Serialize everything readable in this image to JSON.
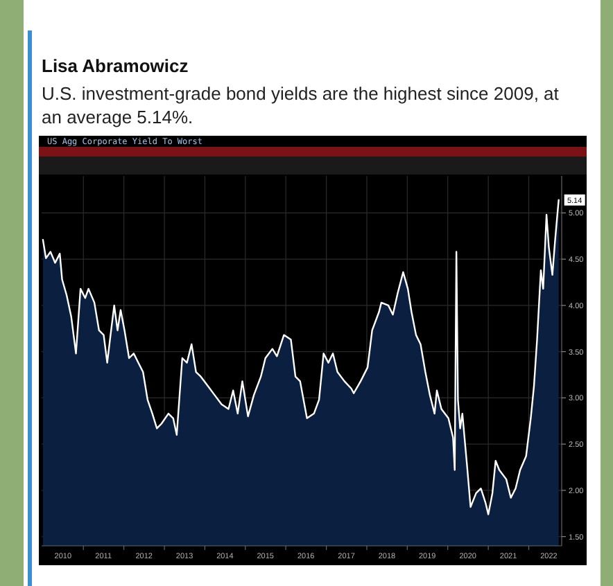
{
  "chart_data": {
    "type": "area",
    "title": "U.S. investment-grade bond yields are the highest since 2009, at an average 5.14%.",
    "subtitle": "US Agg Corporate Yield To Worst",
    "annotations": [
      "Lisa Abramowicz",
      {
        "text": "5.14",
        "x": "2022-09-28",
        "y": 5.14
      }
    ],
    "x": [
      "2010-01-01",
      "2010-01-28",
      "2010-03-10",
      "2010-04-21",
      "2010-06-02",
      "2010-06-23",
      "2010-08-03",
      "2010-09-13",
      "2010-10-26",
      "2010-12-06",
      "2011-01-17",
      "2011-02-16",
      "2011-04-10",
      "2011-05-22",
      "2011-07-03",
      "2011-08-04",
      "2011-09-03",
      "2011-10-06",
      "2011-11-05",
      "2011-12-03",
      "2012-01-07",
      "2012-02-17",
      "2012-03-30",
      "2012-05-11",
      "2012-06-22",
      "2012-08-02",
      "2012-09-14",
      "2012-10-25",
      "2012-12-05",
      "2013-02-06",
      "2013-03-21",
      "2013-04-22",
      "2013-06-11",
      "2013-07-23",
      "2013-09-03",
      "2013-10-13",
      "2013-11-25",
      "2014-01-27",
      "2014-03-30",
      "2014-06-01",
      "2014-08-02",
      "2014-09-13",
      "2014-10-24",
      "2014-12-05",
      "2015-01-25",
      "2015-03-19",
      "2015-05-21",
      "2015-07-01",
      "2015-09-02",
      "2015-10-13",
      "2015-12-15",
      "2016-02-16",
      "2016-03-28",
      "2016-05-09",
      "2016-07-10",
      "2016-09-11",
      "2016-10-27",
      "2016-12-07",
      "2017-01-19",
      "2017-03-01",
      "2017-04-11",
      "2017-06-13",
      "2017-08-14",
      "2017-09-05",
      "2017-11-06",
      "2018-01-08",
      "2018-02-18",
      "2018-04-21",
      "2018-05-12",
      "2018-07-14",
      "2018-08-24",
      "2018-10-06",
      "2018-11-25",
      "2019-01-06",
      "2019-02-08",
      "2019-03-21",
      "2019-05-01",
      "2019-06-13",
      "2019-07-24",
      "2019-09-04",
      "2019-09-25",
      "2019-11-05",
      "2020-01-07",
      "2020-02-18",
      "2020-03-04",
      "2020-03-19",
      "2020-04-02",
      "2020-04-22",
      "2020-05-12",
      "2020-06-23",
      "2020-07-25",
      "2020-09-13",
      "2020-10-26",
      "2020-12-06",
      "2021-01-01",
      "2021-02-07",
      "2021-03-08",
      "2021-04-10",
      "2021-06-12",
      "2021-07-23",
      "2021-09-04",
      "2021-10-15",
      "2021-12-08",
      "2022-01-19",
      "2022-02-17",
      "2022-03-17",
      "2022-04-20",
      "2022-05-11",
      "2022-06-10",
      "2022-07-01",
      "2022-08-02",
      "2022-08-25",
      "2022-09-12",
      "2022-09-28"
    ],
    "values": [
      4.71,
      4.51,
      4.58,
      4.46,
      4.56,
      4.28,
      4.11,
      3.88,
      3.48,
      4.18,
      4.08,
      4.18,
      4.03,
      3.73,
      3.68,
      3.38,
      3.68,
      4.0,
      3.73,
      3.95,
      3.73,
      3.43,
      3.48,
      3.38,
      3.28,
      2.98,
      2.83,
      2.67,
      2.72,
      2.83,
      2.78,
      2.6,
      3.43,
      3.38,
      3.58,
      3.28,
      3.23,
      3.13,
      3.03,
      2.93,
      2.88,
      3.08,
      2.83,
      3.18,
      2.8,
      3.03,
      3.23,
      3.43,
      3.53,
      3.45,
      3.68,
      3.63,
      3.23,
      3.18,
      2.78,
      2.83,
      2.98,
      3.48,
      3.38,
      3.48,
      3.28,
      3.18,
      3.1,
      3.05,
      3.18,
      3.33,
      3.73,
      3.93,
      4.03,
      4.0,
      3.9,
      4.13,
      4.36,
      4.18,
      3.93,
      3.68,
      3.58,
      3.28,
      3.03,
      2.83,
      3.08,
      2.88,
      2.78,
      2.57,
      2.22,
      4.58,
      2.98,
      2.67,
      2.83,
      2.27,
      1.82,
      1.97,
      2.02,
      1.87,
      1.74,
      1.97,
      2.32,
      2.22,
      2.12,
      1.92,
      2.02,
      2.22,
      2.37,
      2.78,
      3.13,
      3.63,
      4.38,
      4.18,
      4.98,
      4.63,
      4.33,
      4.68,
      4.93,
      5.14
    ],
    "color": "#0b2040",
    "xlim": [
      "2009-12-20",
      "2022-10-25"
    ],
    "xticks": [
      {
        "value": "2010-07-01",
        "label": "2010"
      },
      {
        "value": "2011-01-01",
        "label": null
      },
      {
        "value": "2011-07-01",
        "label": "2011"
      },
      {
        "value": "2012-01-01",
        "label": null
      },
      {
        "value": "2012-07-01",
        "label": "2012"
      },
      {
        "value": "2013-01-01",
        "label": null
      },
      {
        "value": "2013-07-01",
        "label": "2013"
      },
      {
        "value": "2014-01-01",
        "label": null
      },
      {
        "value": "2014-07-01",
        "label": "2014"
      },
      {
        "value": "2015-01-01",
        "label": null
      },
      {
        "value": "2015-07-01",
        "label": "2015"
      },
      {
        "value": "2016-01-01",
        "label": null
      },
      {
        "value": "2016-07-01",
        "label": "2016"
      },
      {
        "value": "2017-01-01",
        "label": null
      },
      {
        "value": "2017-07-01",
        "label": "2017"
      },
      {
        "value": "2018-01-01",
        "label": null
      },
      {
        "value": "2018-07-01",
        "label": "2018"
      },
      {
        "value": "2019-01-01",
        "label": null
      },
      {
        "value": "2019-07-01",
        "label": "2019"
      },
      {
        "value": "2020-01-01",
        "label": null
      },
      {
        "value": "2020-07-01",
        "label": "2020"
      },
      {
        "value": "2021-01-01",
        "label": null
      },
      {
        "value": "2021-07-01",
        "label": "2021"
      },
      {
        "value": "2022-01-01",
        "label": null
      },
      {
        "value": "2022-07-01",
        "label": "2022"
      }
    ],
    "ylim": [
      1.4,
      5.4
    ],
    "yticks": [
      {
        "value": 1.5,
        "label": "1.50"
      },
      {
        "value": 2.0,
        "label": "2.00"
      },
      {
        "value": 2.5,
        "label": "2.50"
      },
      {
        "value": 3.0,
        "label": "3.00"
      },
      {
        "value": 3.5,
        "label": "3.50"
      },
      {
        "value": 4.0,
        "label": "4.00"
      },
      {
        "value": 4.5,
        "label": "4.50"
      },
      {
        "value": 5.0,
        "label": "5.00"
      }
    ],
    "grid": true
  }
}
